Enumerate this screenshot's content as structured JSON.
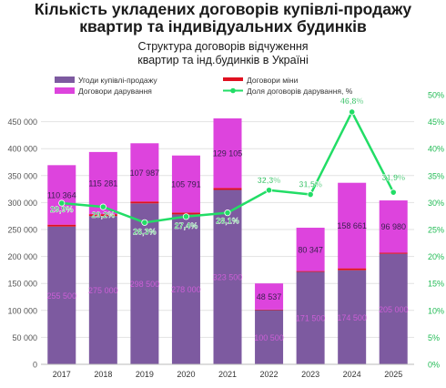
{
  "title_line1": "Кількість укладених договорів купівлі-продажу",
  "title_line2": "квартир та індивідуальних будинків",
  "chart_data": {
    "type": "bar",
    "title_line1": "Структура договорів відчуження",
    "title_line2": "квартир та інд.будинків в Україні",
    "categories": [
      "2017",
      "2018",
      "2019",
      "2020",
      "2021",
      "2022",
      "2023",
      "2024",
      "2025"
    ],
    "series": [
      {
        "name": "Угоди купівлі-продажу",
        "kind": "bar",
        "color": "#7d5aa0",
        "values": [
          255500,
          275000,
          298500,
          278000,
          323500,
          100500,
          171500,
          174500,
          205000
        ],
        "labels": [
          "255 500",
          "275 000",
          "298 500",
          "278 000",
          "323 500",
          "100 500",
          "171 500",
          "174 500",
          "205 000"
        ]
      },
      {
        "name": "Договори міни",
        "kind": "bar",
        "color": "#e01020",
        "values": [
          3500,
          3500,
          3500,
          3500,
          3500,
          1000,
          1500,
          3500,
          2000
        ],
        "labels": []
      },
      {
        "name": "Договори дарування",
        "kind": "bar",
        "color": "#dd44dd",
        "values": [
          110364,
          115281,
          107987,
          105791,
          129105,
          48537,
          80347,
          158661,
          96980
        ],
        "labels": [
          "110 364",
          "115 281",
          "107 987",
          "105 791",
          "129 105",
          "48 537",
          "80 347",
          "158 661",
          "96 980"
        ]
      },
      {
        "name": "Доля договорів дарування, %",
        "kind": "line",
        "color": "#22dd66",
        "values": [
          29.9,
          29.2,
          26.3,
          27.4,
          28.1,
          32.3,
          31.5,
          46.8,
          31.9
        ],
        "labels": [
          "29,9%",
          "29,2%",
          "26,3%",
          "27,4%",
          "28,1%",
          "32,3%",
          "31,5%",
          "46,8%",
          "31,9%"
        ]
      }
    ],
    "y_left": {
      "min": 0,
      "max": 500000,
      "step": 50000,
      "tick_labels": [
        "0",
        "50 000",
        "100 000",
        "150 000",
        "200 000",
        "250 000",
        "300 000",
        "350 000",
        "400 000",
        "450 000"
      ]
    },
    "y_right": {
      "min": 0,
      "max": 50,
      "step": 5,
      "tick_labels": [
        "0%",
        "5%",
        "10%",
        "15%",
        "20%",
        "25%",
        "30%",
        "35%",
        "40%",
        "45%",
        "50%"
      ],
      "color": "#22bb55"
    },
    "grid": true,
    "legend": "top"
  }
}
